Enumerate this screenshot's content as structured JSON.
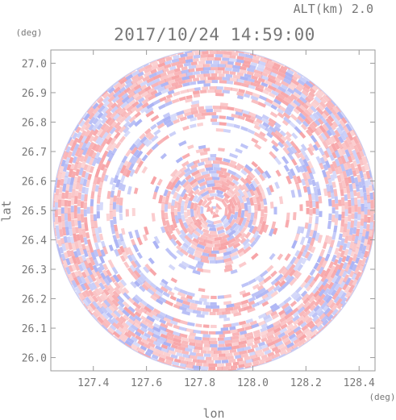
{
  "header": {
    "altitude_label": "ALT(km) 2.0",
    "timestamp": "2017/10/24 14:59:00"
  },
  "axes": {
    "y_unit": "(deg)",
    "x_unit": "(deg)",
    "x_title": "lon",
    "y_title": "lat",
    "x_ticks": [
      "127.4",
      "127.6",
      "127.8",
      "128.0",
      "128.2",
      "128.4"
    ],
    "y_ticks": [
      "27.0",
      "26.9",
      "26.8",
      "26.7",
      "26.6",
      "26.5",
      "26.4",
      "26.3",
      "26.2",
      "26.1",
      "26.0"
    ]
  },
  "map": {
    "x_range": [
      127.24,
      128.46
    ],
    "y_range": [
      25.955,
      27.045
    ],
    "center": [
      127.855,
      26.5
    ],
    "pattern": "radar velocity field, alternating red/blue speckle in a circular scan",
    "colors": {
      "positive": "#f7a3a6",
      "negative": "#aab2f4",
      "frame": "#9a9a9a",
      "text": "#777777"
    }
  }
}
